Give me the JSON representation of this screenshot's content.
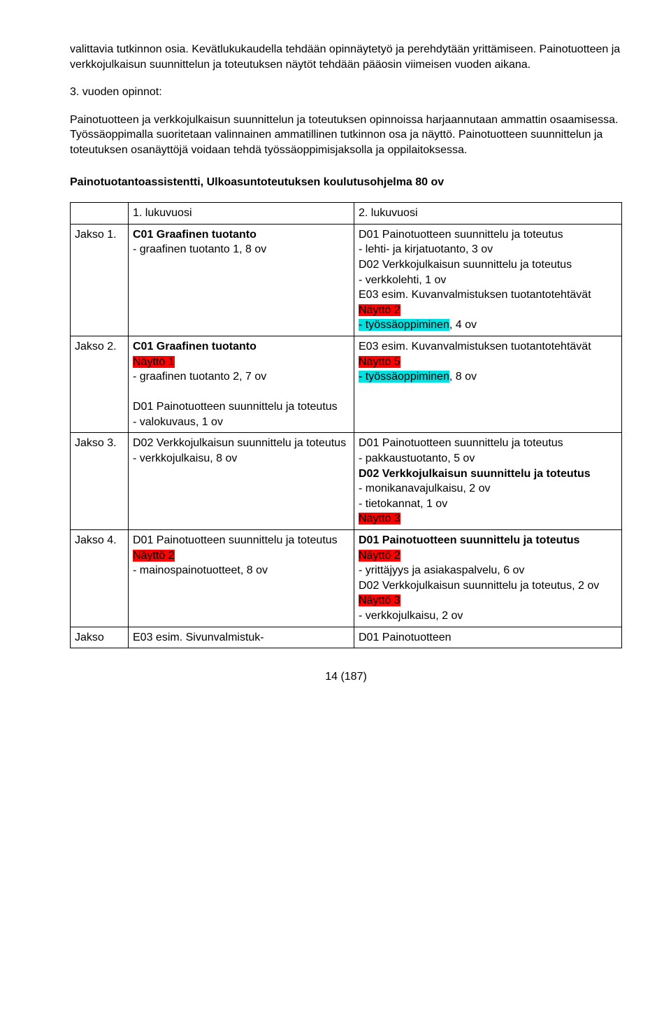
{
  "paragraphs": {
    "p1": "valittavia tutkinnon osia. Kevätlukukaudella tehdään opinnäytetyö ja perehdytään yrittämiseen. Painotuotteen ja verkkojulkaisun suunnittelun ja toteutuksen näytöt tehdään pääosin viimeisen vuoden aikana.",
    "p2_label": "3. vuoden opinnot:",
    "p3": "Painotuotteen ja verkkojulkaisun suunnittelun ja toteutuksen opinnoissa harjaannutaan ammattin osaamisessa. Työssäoppimalla suoritetaan valinnainen ammatillinen tutkinnon osa ja näyttö. Painotuotteen suunnittelun ja toteutuksen osanäyttöjä voidaan tehdä työssäoppimisjaksolla ja oppilaitoksessa."
  },
  "subheading": "Painotuotantoassistentti, Ulkoasuntoteutuksen koulutusohjelma 80 ov",
  "table": {
    "header": {
      "c0": "",
      "c1": "1. lukuvuosi",
      "c2": "2. lukuvuosi"
    },
    "rows": [
      {
        "label": "Jakso 1.",
        "col1": [
          {
            "text": "C01 Graafinen tuotanto",
            "bold": true
          },
          {
            "text": "- graafinen tuotanto 1, 8 ov"
          }
        ],
        "col2": [
          {
            "text": "D01 Painotuotteen suunnittelu ja toteutus"
          },
          {
            "text": "- lehti- ja kirjatuotanto, 3 ov"
          },
          {
            "text": "D02 Verkkojulkaisun suunnittelu ja toteutus"
          },
          {
            "text": "- verkkolehti, 1 ov"
          },
          {
            "text": "E03 esim. Kuvanvalmistuksen tuotantotehtävät"
          },
          {
            "text": "Näyttö 2",
            "hl": "red"
          },
          {
            "parts": [
              {
                "text": "- työssäoppiminen",
                "hl": "cyan"
              },
              {
                "text": ", 4 ov"
              }
            ]
          }
        ]
      },
      {
        "label": "Jakso 2.",
        "col1": [
          {
            "text": "C01 Graafinen tuotanto",
            "bold": true
          },
          {
            "text": "Näyttö 1",
            "hl": "red"
          },
          {
            "text": "- graafinen tuotanto 2, 7 ov"
          },
          {
            "text": " "
          },
          {
            "text": "D01 Painotuotteen suunnittelu ja toteutus"
          },
          {
            "text": "- valokuvaus, 1 ov"
          }
        ],
        "col2": [
          {
            "text": "E03 esim. Kuvanvalmistuksen tuotantotehtävät"
          },
          {
            "text": "Näyttö 5",
            "hl": "red"
          },
          {
            "parts": [
              {
                "text": "- työssäoppiminen",
                "hl": "cyan"
              },
              {
                "text": ", 8 ov"
              }
            ]
          }
        ]
      },
      {
        "label": "Jakso 3.",
        "col1": [
          {
            "text": "D02 Verkkojulkaisun suunnittelu ja toteutus"
          },
          {
            "text": "- verkkojulkaisu, 8 ov"
          }
        ],
        "col2": [
          {
            "text": "D01 Painotuotteen suunnittelu ja toteutus"
          },
          {
            "text": "- pakkaustuotanto, 5 ov"
          },
          {
            "text": "D02 Verkkojulkaisun suunnittelu ja toteutus",
            "bold": true
          },
          {
            "text": "- monikanavajulkaisu, 2 ov"
          },
          {
            "text": "- tietokannat, 1 ov"
          },
          {
            "text": "Näyttö 3",
            "hl": "red"
          }
        ]
      },
      {
        "label": "Jakso 4.",
        "col1": [
          {
            "text": "D01 Painotuotteen suunnittelu ja toteutus"
          },
          {
            "text": "Näyttö 2",
            "hl": "red"
          },
          {
            "text": "- mainospainotuotteet, 8 ov"
          }
        ],
        "col2": [
          {
            "text": "D01 Painotuotteen suunnittelu ja toteutus",
            "bold": true
          },
          {
            "text": "Näyttö 2",
            "hl": "red"
          },
          {
            "text": "- yrittäjyys ja asiakaspalvelu, 6 ov"
          },
          {
            "text": "D02 Verkkojulkaisun suunnittelu ja toteutus, 2 ov"
          },
          {
            "text": "Näyttö 3",
            "hl": "red"
          },
          {
            "text": "- verkkojulkaisu, 2 ov"
          }
        ]
      },
      {
        "label": "Jakso",
        "col1": [
          {
            "text": "E03 esim. Sivunvalmistuk-"
          }
        ],
        "col2": [
          {
            "text": "D01 Painotuotteen"
          }
        ]
      }
    ]
  },
  "footer": "14 (187)",
  "colors": {
    "red": "#ff0000",
    "cyan": "#00e0e0"
  }
}
